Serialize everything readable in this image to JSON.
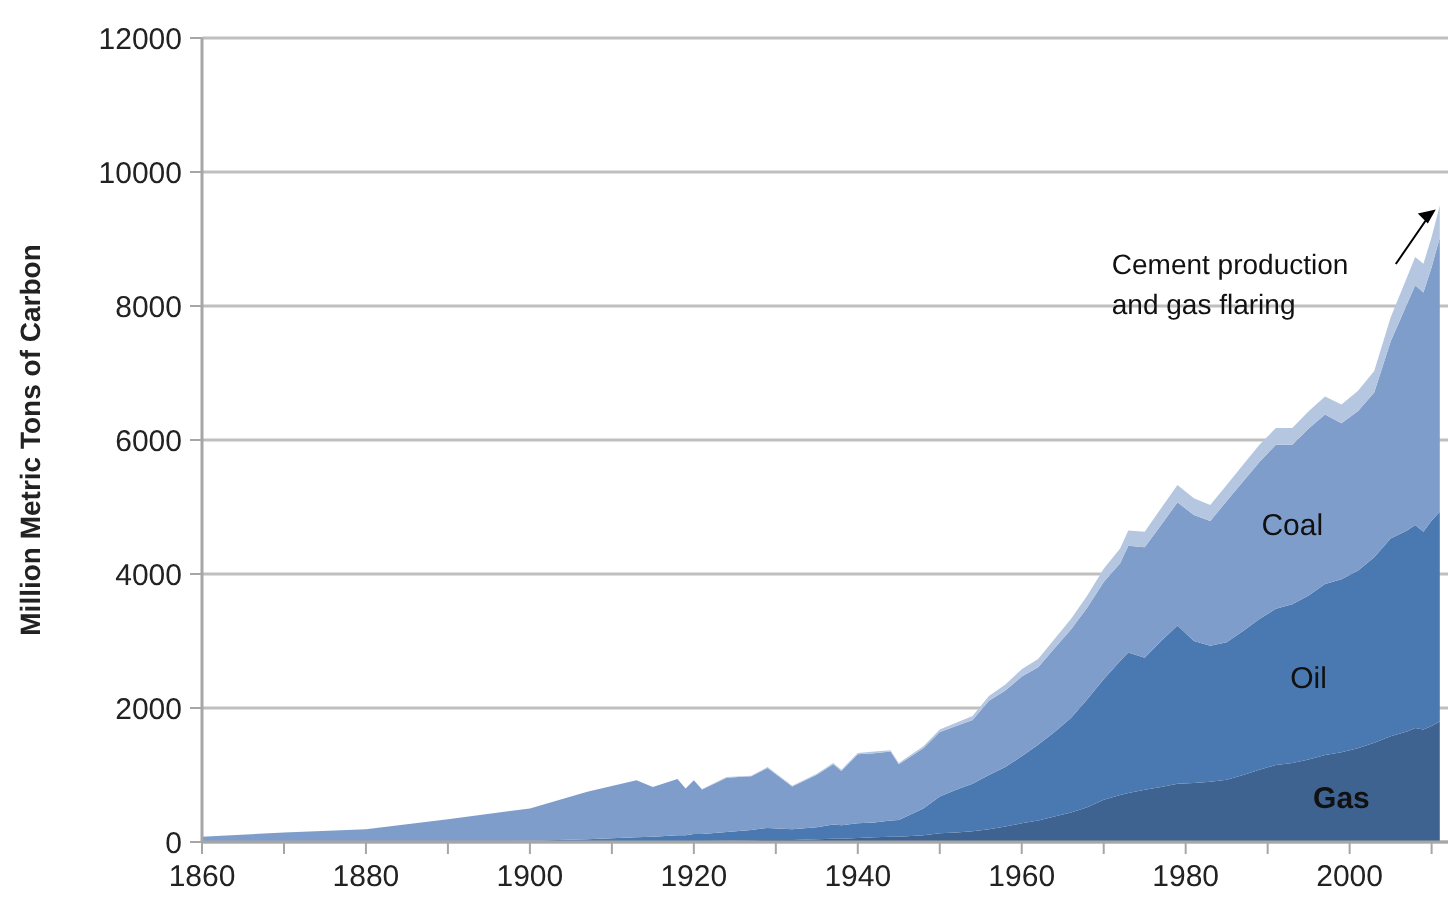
{
  "chart_data": {
    "type": "area",
    "stacked": true,
    "ylabel": "Million Metric Tons of Carbon",
    "x": [
      1860,
      1870,
      1880,
      1890,
      1900,
      1907,
      1913,
      1915,
      1918,
      1919,
      1920,
      1921,
      1924,
      1927,
      1929,
      1932,
      1935,
      1937,
      1938,
      1940,
      1942,
      1944,
      1945,
      1948,
      1950,
      1952,
      1954,
      1956,
      1958,
      1960,
      1962,
      1964,
      1966,
      1968,
      1970,
      1972,
      1973,
      1975,
      1977,
      1979,
      1981,
      1983,
      1985,
      1987,
      1989,
      1991,
      1993,
      1995,
      1997,
      1999,
      2001,
      2003,
      2005,
      2007,
      2008,
      2009,
      2010,
      2011
    ],
    "series": [
      {
        "name": "Gas",
        "color": "#3f6391",
        "values": [
          0,
          0,
          0,
          0,
          2,
          5,
          10,
          10,
          12,
          12,
          15,
          15,
          20,
          25,
          30,
          30,
          40,
          50,
          50,
          60,
          70,
          80,
          80,
          100,
          130,
          140,
          160,
          190,
          230,
          280,
          320,
          380,
          440,
          520,
          630,
          700,
          730,
          780,
          820,
          870,
          880,
          900,
          930,
          1000,
          1080,
          1150,
          1180,
          1230,
          1300,
          1340,
          1400,
          1480,
          1580,
          1650,
          1700,
          1680,
          1730,
          1800
        ]
      },
      {
        "name": "Oil",
        "color": "#4a78b0",
        "values": [
          0,
          0,
          2,
          5,
          18,
          35,
          60,
          70,
          88,
          88,
          105,
          105,
          130,
          155,
          180,
          160,
          180,
          210,
          200,
          220,
          220,
          240,
          250,
          400,
          550,
          640,
          710,
          810,
          890,
          1000,
          1130,
          1260,
          1410,
          1610,
          1800,
          2000,
          2100,
          1970,
          2180,
          2360,
          2120,
          2030,
          2050,
          2150,
          2250,
          2330,
          2370,
          2450,
          2550,
          2580,
          2650,
          2770,
          2950,
          3000,
          3030,
          2950,
          3070,
          3130
        ]
      },
      {
        "name": "Coal",
        "color": "#7f9dcb",
        "values": [
          80,
          140,
          188,
          335,
          480,
          710,
          850,
          740,
          840,
          700,
          800,
          665,
          810,
          800,
          895,
          640,
          785,
          900,
          810,
          1030,
          1035,
          1030,
          830,
          900,
          960,
          950,
          950,
          1110,
          1140,
          1190,
          1160,
          1250,
          1320,
          1370,
          1450,
          1460,
          1590,
          1650,
          1730,
          1840,
          1880,
          1860,
          2110,
          2230,
          2340,
          2450,
          2380,
          2490,
          2530,
          2330,
          2380,
          2460,
          2940,
          3380,
          3580,
          3570,
          3780,
          4090
        ]
      },
      {
        "name": "Cement production and gas flaring",
        "color": "#b5c6e0",
        "values": [
          0,
          0,
          0,
          0,
          0,
          0,
          0,
          0,
          0,
          0,
          0,
          5,
          10,
          10,
          15,
          10,
          15,
          20,
          20,
          20,
          25,
          20,
          20,
          30,
          40,
          50,
          60,
          70,
          90,
          110,
          120,
          140,
          160,
          180,
          200,
          220,
          230,
          230,
          250,
          260,
          250,
          240,
          240,
          250,
          260,
          250,
          250,
          260,
          270,
          280,
          300,
          320,
          360,
          400,
          420,
          430,
          450,
          480
        ]
      }
    ],
    "xlim": [
      1860,
      2012
    ],
    "xticks": [
      1860,
      {
        "value": 1870,
        "label": null
      },
      1880,
      {
        "value": 1890,
        "label": null
      },
      1900,
      {
        "value": 1910,
        "label": null
      },
      1920,
      {
        "value": 1930,
        "label": null
      },
      1940,
      {
        "value": 1950,
        "label": null
      },
      1960,
      {
        "value": 1970,
        "label": null
      },
      1980,
      {
        "value": 1990,
        "label": null
      },
      2000,
      {
        "value": 2010,
        "label": null
      }
    ],
    "ylim": [
      0,
      12000
    ],
    "yticks": [
      0,
      2000,
      4000,
      6000,
      8000,
      10000,
      12000
    ],
    "grid": "y"
  }
}
